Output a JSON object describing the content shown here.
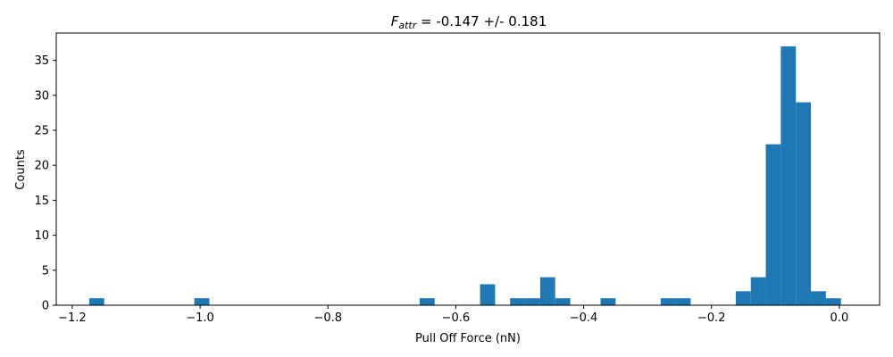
{
  "chart_data": {
    "type": "bar",
    "title": {
      "symbol": "F",
      "subscript": "attr",
      "rest": " = -0.147 +/- 0.181"
    },
    "xlabel": "Pull Off Force (nN)",
    "ylabel": "Counts",
    "xlim": [
      -1.225,
      0.063
    ],
    "ylim": [
      0,
      38.9
    ],
    "xticks": [
      -1.2,
      -1.0,
      -0.8,
      -0.6,
      -0.4,
      -0.2,
      0.0
    ],
    "xtick_labels": [
      "−1.2",
      "−1.0",
      "−0.8",
      "−0.6",
      "−0.4",
      "−0.2",
      "0.0"
    ],
    "yticks": [
      0,
      5,
      10,
      15,
      20,
      25,
      30,
      35
    ],
    "ytick_labels": [
      "0",
      "5",
      "10",
      "15",
      "20",
      "25",
      "30",
      "35"
    ],
    "bin_width": 0.0235,
    "bins": [
      {
        "x0": -1.1735,
        "count": 1
      },
      {
        "x0": -1.009,
        "count": 1
      },
      {
        "x0": -0.6565,
        "count": 1
      },
      {
        "x0": -0.562,
        "count": 3
      },
      {
        "x0": -0.515,
        "count": 1
      },
      {
        "x0": -0.4915,
        "count": 1
      },
      {
        "x0": -0.468,
        "count": 4
      },
      {
        "x0": -0.4445,
        "count": 1
      },
      {
        "x0": -0.3735,
        "count": 1
      },
      {
        "x0": -0.2795,
        "count": 1
      },
      {
        "x0": -0.256,
        "count": 1
      },
      {
        "x0": -0.162,
        "count": 2
      },
      {
        "x0": -0.1385,
        "count": 4
      },
      {
        "x0": -0.115,
        "count": 23
      },
      {
        "x0": -0.0915,
        "count": 37
      },
      {
        "x0": -0.068,
        "count": 29
      },
      {
        "x0": -0.0445,
        "count": 2
      },
      {
        "x0": -0.021,
        "count": 1
      }
    ],
    "bar_color": "#1f77b4",
    "grid": false
  }
}
